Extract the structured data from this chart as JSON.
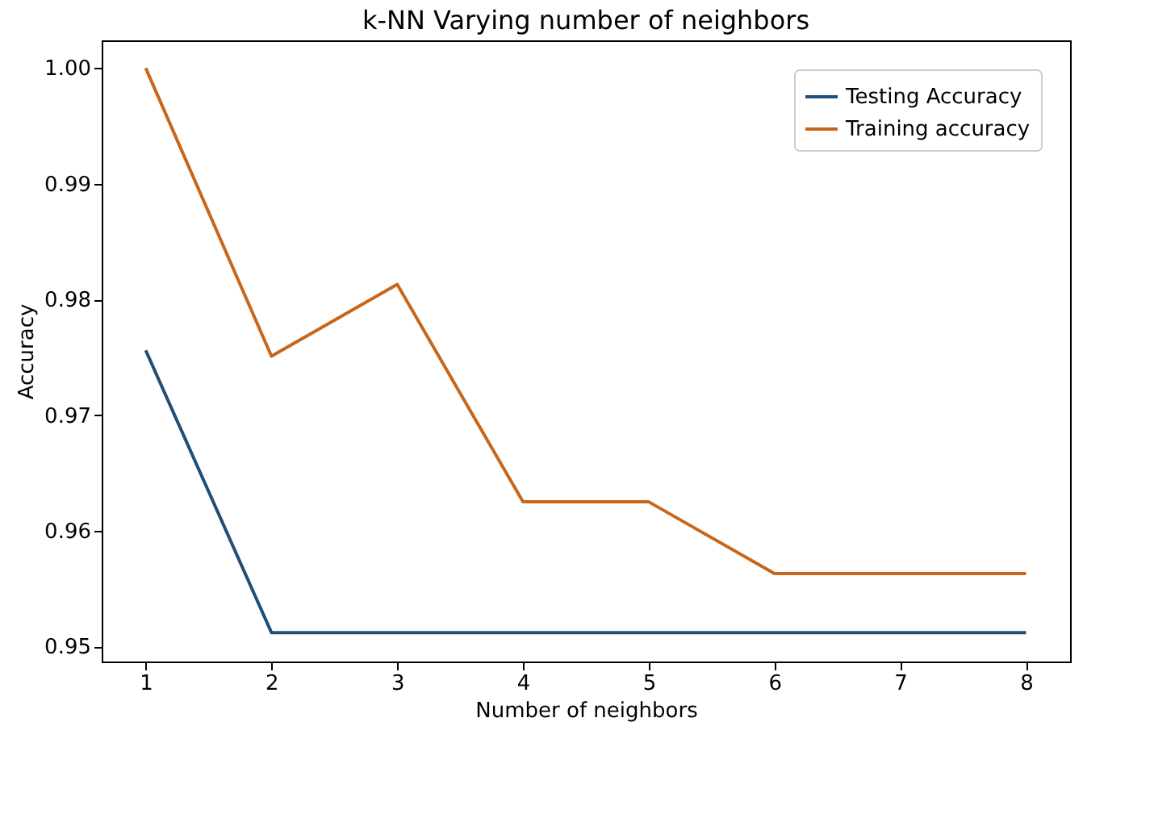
{
  "chart_data": {
    "type": "line",
    "title": "k-NN Varying number of neighbors",
    "xlabel": "Number of neighbors",
    "ylabel": "Accuracy",
    "x": [
      1,
      2,
      3,
      4,
      5,
      6,
      7,
      8
    ],
    "series": [
      {
        "name": "Testing Accuracy",
        "color": "#1f4e79",
        "values": [
          0.9756,
          0.9512,
          0.9512,
          0.9512,
          0.9512,
          0.9512,
          0.9512,
          0.9512
        ]
      },
      {
        "name": "Training accuracy",
        "color": "#c8661b",
        "values": [
          1.0,
          0.9751,
          0.9813,
          0.9625,
          0.9625,
          0.9563,
          0.9563,
          0.9563
        ]
      }
    ],
    "xlim": [
      0.65,
      8.35
    ],
    "xticks": [
      1,
      2,
      3,
      4,
      5,
      6,
      7,
      8
    ],
    "ylim": [
      0.9487,
      1.0024
    ],
    "yticks": [
      {
        "value": 0.95,
        "label": "0.95"
      },
      {
        "value": 0.96,
        "label": "0.96"
      },
      {
        "value": 0.97,
        "label": "0.97"
      },
      {
        "value": 0.98,
        "label": "0.98"
      },
      {
        "value": 0.99,
        "label": "0.99"
      },
      {
        "value": 1.0,
        "label": "1.00"
      }
    ],
    "legend": "top right",
    "grid": false
  }
}
